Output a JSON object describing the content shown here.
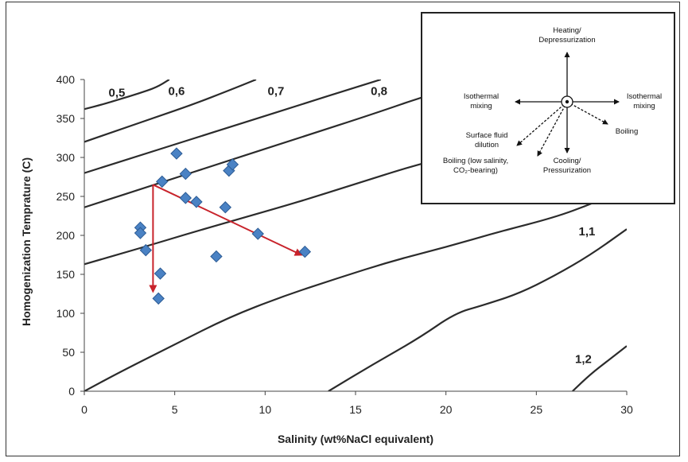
{
  "chart_data": {
    "type": "scatter",
    "title": "",
    "xlabel": "Salinity (wt%NaCl equivalent)",
    "ylabel": "Homogenization Temprature (C)",
    "xlim": [
      0,
      30
    ],
    "ylim": [
      0,
      400
    ],
    "x_ticks": [
      "0",
      "5",
      "10",
      "15",
      "20",
      "25",
      "30"
    ],
    "y_ticks": [
      "0",
      "50",
      "100",
      "150",
      "200",
      "250",
      "300",
      "350",
      "400"
    ],
    "grid": false,
    "marker_color": "#4a82c4",
    "series": [
      {
        "points": [
          {
            "x": 3.1,
            "y": 210
          },
          {
            "x": 3.1,
            "y": 203
          },
          {
            "x": 3.4,
            "y": 181
          },
          {
            "x": 4.2,
            "y": 151
          },
          {
            "x": 4.1,
            "y": 119
          },
          {
            "x": 4.3,
            "y": 269
          },
          {
            "x": 5.1,
            "y": 305
          },
          {
            "x": 5.6,
            "y": 279
          },
          {
            "x": 5.6,
            "y": 248
          },
          {
            "x": 6.2,
            "y": 243
          },
          {
            "x": 7.3,
            "y": 173
          },
          {
            "x": 7.8,
            "y": 236
          },
          {
            "x": 8.0,
            "y": 283
          },
          {
            "x": 8.2,
            "y": 291
          },
          {
            "x": 9.6,
            "y": 202
          },
          {
            "x": 12.2,
            "y": 179
          }
        ]
      }
    ],
    "density_isolines": [
      {
        "label": "0,5",
        "points": [
          [
            0,
            362
          ],
          [
            1,
            368
          ],
          [
            2,
            375
          ],
          [
            3,
            382
          ],
          [
            4,
            390
          ],
          [
            4.7,
            400
          ]
        ],
        "label_at": [
          1.8,
          378
        ]
      },
      {
        "label": "0,6",
        "points": [
          [
            0,
            320
          ],
          [
            2,
            336
          ],
          [
            4,
            352
          ],
          [
            6,
            368
          ],
          [
            8,
            386
          ],
          [
            9.5,
            400
          ]
        ],
        "label_at": [
          5.1,
          380
        ]
      },
      {
        "label": "0,7",
        "points": [
          [
            0,
            280
          ],
          [
            3,
            302
          ],
          [
            6,
            324
          ],
          [
            9,
            346
          ],
          [
            12,
            368
          ],
          [
            15,
            390
          ],
          [
            16.4,
            400
          ]
        ],
        "label_at": [
          10.6,
          380
        ]
      },
      {
        "label": "0,8",
        "points": [
          [
            0,
            236
          ],
          [
            4,
            266
          ],
          [
            8,
            296
          ],
          [
            12,
            326
          ],
          [
            16,
            356
          ],
          [
            19,
            380
          ],
          [
            22,
            400
          ]
        ],
        "label_at": [
          16.3,
          380
        ]
      },
      {
        "label": "",
        "points": [
          [
            0,
            163
          ],
          [
            3,
            183
          ],
          [
            6,
            204
          ],
          [
            9,
            224
          ],
          [
            12,
            244
          ],
          [
            15,
            266
          ],
          [
            18,
            288
          ],
          [
            20,
            300
          ]
        ]
      },
      {
        "label": "1,1",
        "points": [
          [
            0,
            0
          ],
          [
            2,
            25
          ],
          [
            5,
            60
          ],
          [
            8,
            95
          ],
          [
            11,
            122
          ],
          [
            14,
            145
          ],
          [
            17,
            167
          ],
          [
            20,
            185
          ],
          [
            23,
            205
          ],
          [
            26,
            223
          ],
          [
            28,
            240
          ],
          [
            30,
            260
          ]
        ],
        "label_at": [
          27.8,
          200
        ]
      },
      {
        "label": "",
        "points": [
          [
            13.5,
            0
          ],
          [
            16,
            35
          ],
          [
            18.5,
            68
          ],
          [
            20.5,
            100
          ],
          [
            22,
            110
          ],
          [
            24,
            125
          ],
          [
            26,
            148
          ],
          [
            28,
            175
          ],
          [
            30,
            208
          ]
        ]
      },
      {
        "label": "1,2",
        "points": [
          [
            27,
            0
          ],
          [
            28,
            22
          ],
          [
            29,
            40
          ],
          [
            30,
            58
          ]
        ],
        "label_at": [
          27.6,
          36
        ]
      }
    ],
    "arrows": [
      {
        "from": [
          3.8,
          265
        ],
        "to": [
          3.8,
          128
        ],
        "color": "#c8232b"
      },
      {
        "from": [
          3.8,
          265
        ],
        "to": [
          12.0,
          175
        ],
        "color": "#c8232b"
      }
    ],
    "inset": {
      "labels": {
        "top": [
          "Heating/",
          "Depressurization"
        ],
        "left": [
          "Isothermal",
          "mixing"
        ],
        "right": [
          "Isothermal",
          "mixing"
        ],
        "lower_left": [
          "Surface fluid",
          "dilution"
        ],
        "bottom_left": [
          "Boiling (low salinity,",
          "CO₂-bearing)"
        ],
        "bottom": [
          "Cooling/",
          "Pressurization"
        ],
        "lower_right": [
          "Boiling"
        ]
      }
    }
  }
}
